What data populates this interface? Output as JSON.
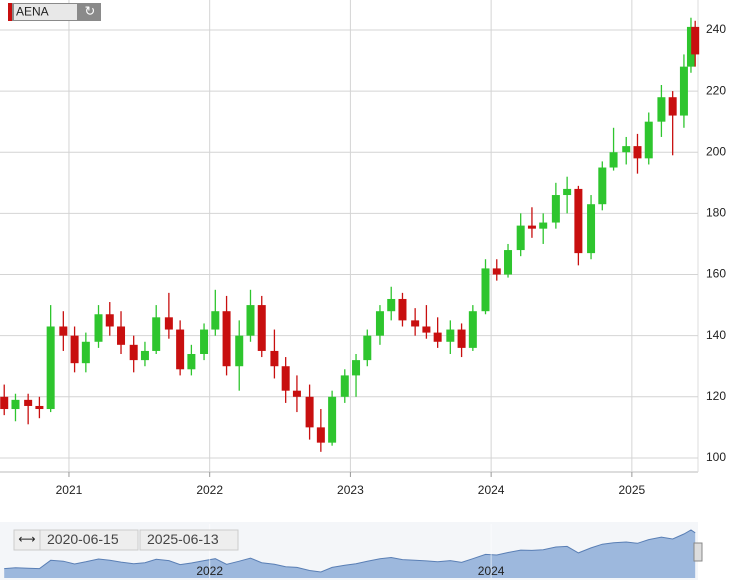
{
  "chart_data": {
    "type": "candlestick",
    "symbol": "AENA",
    "x": [
      2020.54,
      2020.62,
      2020.71,
      2020.79,
      2020.87,
      2020.96,
      2021.04,
      2021.12,
      2021.21,
      2021.29,
      2021.37,
      2021.46,
      2021.54,
      2021.62,
      2021.71,
      2021.79,
      2021.87,
      2021.96,
      2022.04,
      2022.12,
      2022.21,
      2022.29,
      2022.37,
      2022.46,
      2022.54,
      2022.62,
      2022.71,
      2022.79,
      2022.87,
      2022.96,
      2023.04,
      2023.12,
      2023.21,
      2023.29,
      2023.37,
      2023.46,
      2023.54,
      2023.62,
      2023.71,
      2023.79,
      2023.87,
      2023.96,
      2024.04,
      2024.12,
      2024.21,
      2024.29,
      2024.37,
      2024.46,
      2024.54,
      2024.62,
      2024.71,
      2024.79,
      2024.87,
      2024.96,
      2025.04,
      2025.12,
      2025.21,
      2025.29,
      2025.37,
      2025.42,
      2025.45
    ],
    "open": [
      120,
      116,
      119,
      117,
      116,
      143,
      140,
      131,
      138,
      147,
      143,
      137,
      132,
      135,
      146,
      142,
      129,
      134,
      142,
      148,
      130,
      140,
      150,
      135,
      130,
      122,
      120,
      110,
      105,
      120,
      127,
      132,
      140,
      148,
      152,
      145,
      143,
      141,
      138,
      142,
      136,
      148,
      162,
      160,
      168,
      176,
      175,
      177,
      186,
      188,
      167,
      183,
      195,
      200,
      202,
      198,
      210,
      218,
      212,
      228,
      241
    ],
    "high": [
      124,
      121,
      121,
      120,
      150,
      148,
      143,
      141,
      150,
      151,
      148,
      140,
      138,
      150,
      154,
      145,
      137,
      144,
      155,
      153,
      145,
      155,
      153,
      142,
      133,
      127,
      124,
      116,
      122,
      129,
      134,
      142,
      150,
      156,
      154,
      149,
      150,
      146,
      145,
      144,
      150,
      165,
      165,
      170,
      180,
      182,
      180,
      190,
      192,
      189,
      186,
      197,
      208,
      205,
      206,
      213,
      222,
      220,
      232,
      244,
      243
    ],
    "low": [
      114,
      112,
      111,
      113,
      115,
      135,
      128,
      128,
      136,
      140,
      134,
      128,
      130,
      134,
      139,
      127,
      127,
      132,
      140,
      127,
      122,
      138,
      133,
      126,
      118,
      115,
      106,
      102,
      104,
      118,
      120,
      130,
      137,
      145,
      143,
      140,
      139,
      136,
      134,
      133,
      135,
      147,
      158,
      159,
      166,
      172,
      170,
      175,
      180,
      163,
      165,
      181,
      194,
      196,
      193,
      196,
      205,
      199,
      208,
      226,
      228
    ],
    "close": [
      116,
      119,
      117,
      116,
      143,
      140,
      131,
      138,
      147,
      143,
      137,
      132,
      135,
      146,
      142,
      129,
      134,
      142,
      148,
      130,
      140,
      150,
      135,
      130,
      122,
      120,
      110,
      105,
      120,
      127,
      132,
      140,
      148,
      152,
      145,
      143,
      141,
      138,
      142,
      136,
      148,
      162,
      160,
      168,
      176,
      175,
      177,
      186,
      188,
      167,
      183,
      195,
      200,
      202,
      198,
      210,
      218,
      212,
      228,
      241,
      232
    ],
    "up_color": "#2ec52e",
    "down_color": "#c80f0f",
    "xlim": [
      2020.51,
      2025.47
    ],
    "xticks": [
      2021,
      2022,
      2023,
      2024,
      2025
    ],
    "ylim": [
      95.4,
      249.8
    ],
    "yticks": [
      100,
      120,
      140,
      160,
      180,
      200,
      220,
      240
    ],
    "grid": true,
    "navigator": {
      "start": "2020-06-15",
      "end": "2025-06-13",
      "xticks": [
        2022,
        2024
      ],
      "color": "#9db8dd"
    }
  }
}
